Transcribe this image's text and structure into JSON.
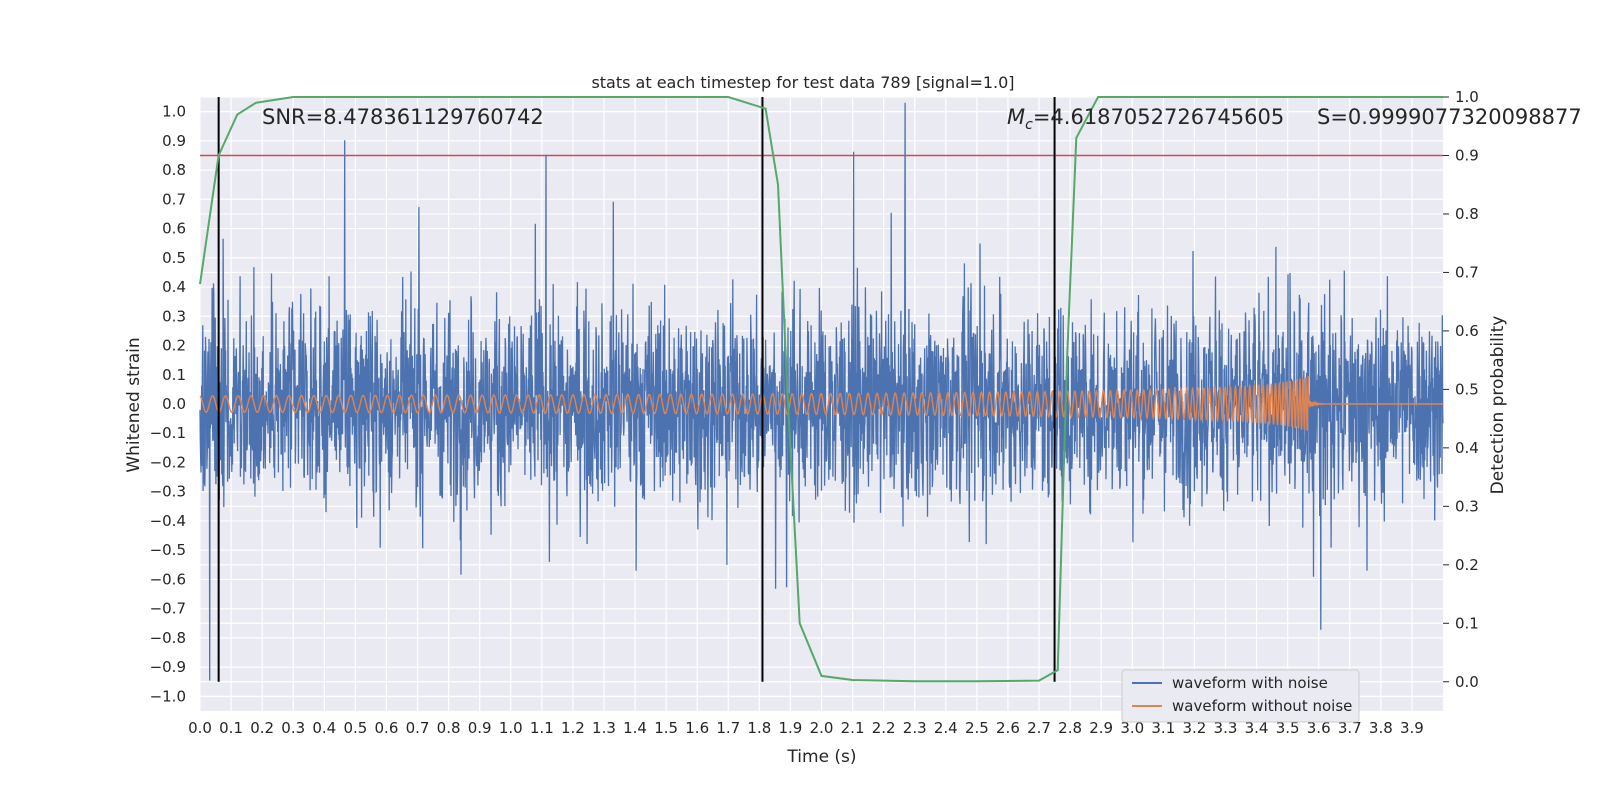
{
  "chart_data": {
    "type": "line",
    "title": "stats at each timestep for test data 789 [signal=1.0]",
    "xlabel": "Time (s)",
    "ylabel": "Whitened strain",
    "ylabel_right": "Detection probability",
    "xlim": [
      0.0,
      4.0
    ],
    "ylim": [
      -1.05,
      1.05
    ],
    "ylim_right": [
      -0.05,
      1.0
    ],
    "x_ticks": [
      "0.0",
      "0.1",
      "0.2",
      "0.3",
      "0.4",
      "0.5",
      "0.6",
      "0.7",
      "0.8",
      "0.9",
      "1.0",
      "1.1",
      "1.2",
      "1.3",
      "1.4",
      "1.5",
      "1.6",
      "1.7",
      "1.8",
      "1.9",
      "2.0",
      "2.1",
      "2.2",
      "2.3",
      "2.4",
      "2.5",
      "2.6",
      "2.7",
      "2.8",
      "2.9",
      "3.0",
      "3.1",
      "3.2",
      "3.3",
      "3.4",
      "3.5",
      "3.6",
      "3.7",
      "3.8",
      "3.9"
    ],
    "y_ticks": [
      "1.0",
      "0.9",
      "0.8",
      "0.7",
      "0.6",
      "0.5",
      "0.4",
      "0.3",
      "0.2",
      "0.1",
      "0.0",
      "−0.1",
      "−0.2",
      "−0.3",
      "−0.4",
      "−0.5",
      "−0.6",
      "−0.7",
      "−0.8",
      "−0.9",
      "−1.0"
    ],
    "y_ticks_right": [
      "1.0",
      "0.9",
      "0.8",
      "0.7",
      "0.6",
      "0.5",
      "0.4",
      "0.3",
      "0.2",
      "0.1",
      "0.0"
    ],
    "grid": true,
    "threshold": 0.9,
    "vertical_markers": [
      0.06,
      1.81,
      2.75
    ],
    "annotations": {
      "snr": "SNR=8.478361129760742",
      "mc": "=4.6187052726745605",
      "mc_symbol": "M",
      "mc_sub": "c",
      "s": "S=0.9999077320098877"
    },
    "series": [
      {
        "name": "waveform with noise",
        "color": "#4c72b0",
        "axis": "left",
        "description": "noisy strain, amplitude roughly ±0.7 with spikes to 1.0"
      },
      {
        "name": "waveform without noise",
        "color": "#dd8452",
        "axis": "left",
        "description": "chirp, amplitude grows from ~0.03 to ~0.17, merger near 3.57 s"
      },
      {
        "name": "detection probability",
        "color": "#55a868",
        "axis": "right",
        "x": [
          0.0,
          0.06,
          0.12,
          0.18,
          0.24,
          0.3,
          1.0,
          1.7,
          1.76,
          1.82,
          1.86,
          1.89,
          1.93,
          2.0,
          2.1,
          2.3,
          2.5,
          2.7,
          2.76,
          2.79,
          2.82,
          2.89,
          3.0,
          3.5,
          4.0
        ],
        "values": [
          0.68,
          0.9,
          0.97,
          0.99,
          0.995,
          1.0,
          1.0,
          1.0,
          0.99,
          0.98,
          0.85,
          0.5,
          0.1,
          0.01,
          0.003,
          0.001,
          0.001,
          0.002,
          0.02,
          0.55,
          0.93,
          1.0,
          1.0,
          1.0,
          1.0
        ]
      }
    ],
    "legend": {
      "position": "lower-right",
      "entries": [
        "waveform with noise",
        "waveform without noise"
      ]
    }
  },
  "colors": {
    "plot_bg": "#eaeaf2",
    "grid": "#ffffff",
    "noise": "#4c72b0",
    "clean": "#dd8452",
    "prob": "#55a868",
    "threshold": "#c44e52",
    "marker": "#000000"
  }
}
